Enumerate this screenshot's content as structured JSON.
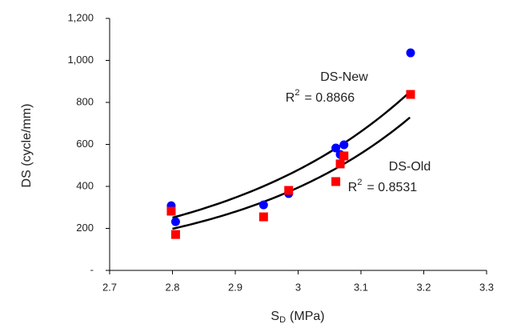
{
  "chart_data": {
    "type": "scatter",
    "x_label": {
      "main": "S",
      "sub": "D",
      "rest": "(MPa)"
    },
    "y_label": "DS (cycle/mm)",
    "xlim": [
      2.7,
      3.3
    ],
    "xticks": [
      2.7,
      2.8,
      2.9,
      {
        "value": 3.0,
        "label": "3"
      },
      3.1,
      3.2,
      3.3
    ],
    "ylim": [
      0,
      1200
    ],
    "yticks": [
      {
        "value": 0,
        "label": "-"
      },
      200,
      400,
      600,
      800,
      {
        "value": 1000,
        "label": "1,000"
      },
      {
        "value": 1200,
        "label": "1,200"
      }
    ],
    "series": [
      {
        "name": "DS-New",
        "color": "#0000ff",
        "marker": "circle",
        "x": [
          2.798,
          2.805,
          2.945,
          2.985,
          3.06,
          3.067,
          3.073,
          3.179
        ],
        "values": [
          308,
          232,
          312,
          366,
          583,
          552,
          598,
          1036
        ],
        "r2": {
          "prefix": "R",
          "sup": "2",
          "text": "= 0.8866"
        },
        "fit": {
          "type": "exponential",
          "a": 0.0299,
          "b": 3.227,
          "x_range": [
            2.8,
            3.178
          ]
        }
      },
      {
        "name": "DS-Old",
        "color": "#ff0000",
        "marker": "square",
        "x": [
          2.798,
          2.805,
          2.945,
          2.985,
          3.06,
          3.067,
          3.073,
          3.179
        ],
        "values": [
          282,
          171,
          255,
          381,
          423,
          507,
          545,
          838
        ],
        "r2": {
          "prefix": "R",
          "sup": "2",
          "text": "= 0.8531"
        },
        "fit": {
          "type": "exponential",
          "a": 0.01285,
          "b": 3.444,
          "x_range": [
            2.8,
            3.178
          ]
        }
      }
    ]
  }
}
